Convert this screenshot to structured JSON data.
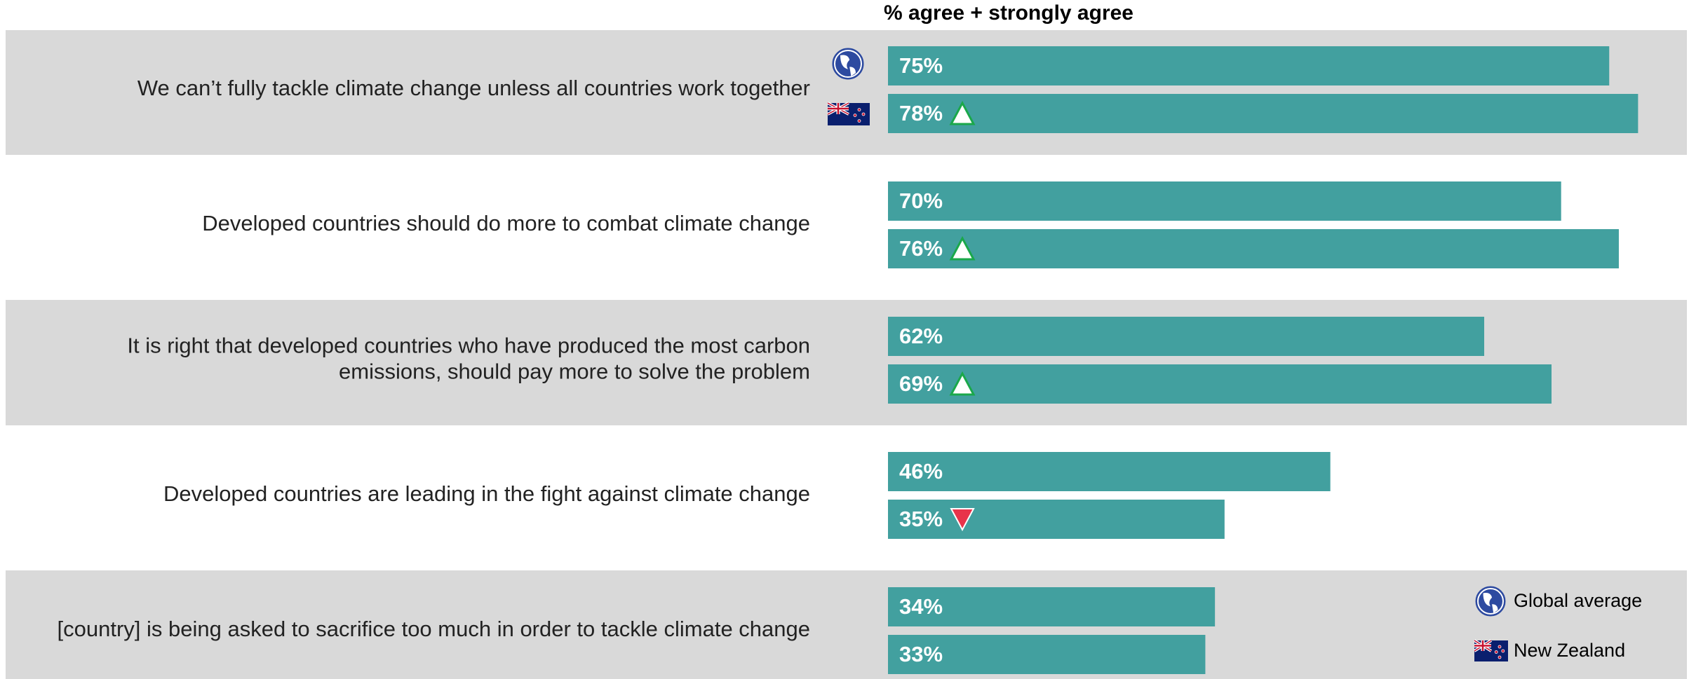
{
  "chart_data": {
    "type": "bar",
    "orientation": "horizontal",
    "title": "% agree + strongly agree",
    "categories": [
      "We can’t fully tackle climate change unless all countries work together",
      "Developed countries should do more to combat climate change",
      "It is right that developed countries who have produced the most carbon\nemissions, should pay more to solve the problem",
      "Developed countries are leading in the fight against climate change",
      "[country] is being asked to sacrifice too much in order to tackle climate change"
    ],
    "series": [
      {
        "name": "Global average",
        "color": "#42a09f",
        "values": [
          75,
          70,
          62,
          46,
          34
        ],
        "value_labels": [
          "75%",
          "70%",
          "62%",
          "46%",
          "34%"
        ]
      },
      {
        "name": "New Zealand",
        "color": "#42a09f",
        "values": [
          78,
          76,
          69,
          35,
          33
        ],
        "value_labels": [
          "78%",
          "76%",
          "69%",
          "35%",
          "33%"
        ],
        "markers": [
          "up",
          "up",
          "up",
          "down",
          null
        ]
      }
    ],
    "xlim": [
      0,
      100
    ]
  }
}
